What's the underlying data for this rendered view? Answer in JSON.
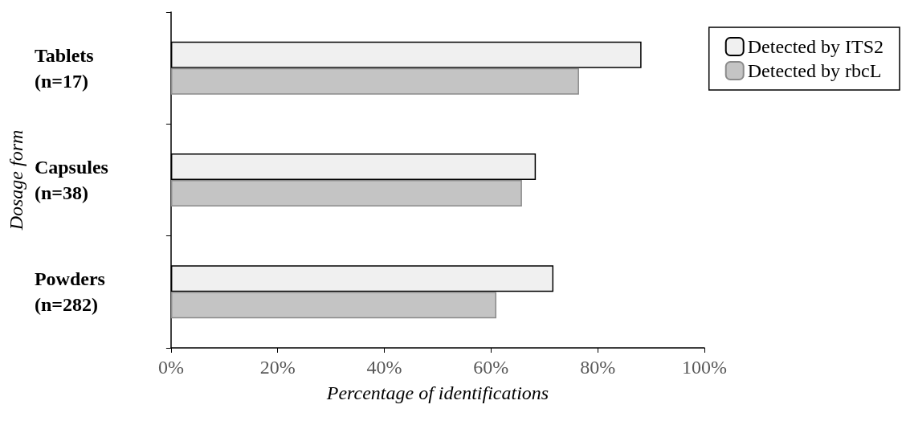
{
  "chart_data": {
    "type": "bar",
    "orientation": "horizontal",
    "xlabel": "Percentage of identifications",
    "ylabel": "Dosage form",
    "categories": [
      "Tablets\n(n=17)",
      "Capsules\n(n=38)",
      "Powders\n(n=282)"
    ],
    "series": [
      {
        "name": "Detected by ITS2",
        "color": "#f0f0f0",
        "values": [
          88.2,
          68.4,
          71.7
        ]
      },
      {
        "name": "Detected by rbcL",
        "color": "#c4c4c4",
        "values": [
          76.5,
          65.8,
          61.0
        ]
      }
    ],
    "xlim": [
      0,
      100
    ],
    "xticks": [
      {
        "value": 0,
        "label": "0%"
      },
      {
        "value": 20,
        "label": "20%"
      },
      {
        "value": 40,
        "label": "40%"
      },
      {
        "value": 60,
        "label": "60%"
      },
      {
        "value": 80,
        "label": "80%"
      },
      {
        "value": 100,
        "label": "100%"
      }
    ],
    "grid": false,
    "legend": "top right"
  }
}
